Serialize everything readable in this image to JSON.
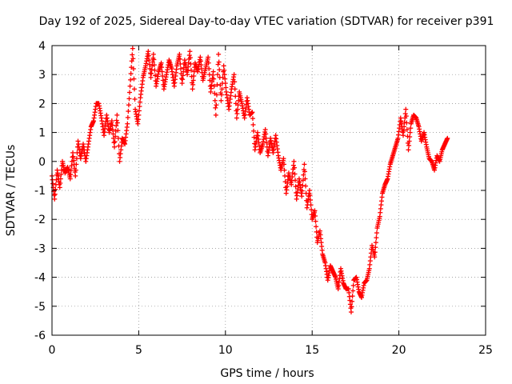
{
  "chart_data": {
    "type": "scatter",
    "title": "Day 192 of 2025, Sidereal Day-to-day VTEC variation (SDTVAR) for receiver p391",
    "xlabel": "GPS time / hours",
    "ylabel": "SDTVAR / TECUs",
    "xlim": [
      0,
      25
    ],
    "ylim": [
      -6,
      4
    ],
    "xticks": [
      0,
      5,
      10,
      15,
      20,
      25
    ],
    "yticks": [
      -6,
      -5,
      -4,
      -3,
      -2,
      -1,
      0,
      1,
      2,
      3,
      4
    ],
    "xtick_labels": [
      "0",
      "5",
      "10",
      "15",
      "20",
      "25"
    ],
    "ytick_labels": [
      "-6",
      "-5",
      "-4",
      "-3",
      "-2",
      "-1",
      "0",
      "1",
      "2",
      "3",
      "4"
    ],
    "grid": true,
    "marker": "+",
    "color": "#ff0000",
    "series": [
      {
        "name": "SDTVAR",
        "x": [
          0.0,
          0.15,
          0.3,
          0.45,
          0.6,
          0.75,
          0.9,
          1.05,
          1.2,
          1.35,
          1.5,
          1.65,
          1.8,
          1.95,
          2.1,
          2.25,
          2.4,
          2.55,
          2.7,
          2.85,
          3.0,
          3.15,
          3.3,
          3.45,
          3.6,
          3.75,
          3.9,
          4.05,
          4.2,
          4.35,
          4.5,
          4.65,
          4.8,
          4.95,
          5.1,
          5.25,
          5.4,
          5.55,
          5.7,
          5.85,
          6.0,
          6.15,
          6.3,
          6.45,
          6.6,
          6.75,
          6.9,
          7.05,
          7.2,
          7.35,
          7.5,
          7.65,
          7.8,
          7.95,
          8.1,
          8.25,
          8.4,
          8.55,
          8.7,
          8.85,
          9.0,
          9.15,
          9.3,
          9.45,
          9.6,
          9.75,
          9.9,
          10.05,
          10.2,
          10.35,
          10.5,
          10.65,
          10.8,
          10.95,
          11.1,
          11.25,
          11.4,
          11.55,
          11.7,
          11.85,
          12.0,
          12.15,
          12.3,
          12.45,
          12.6,
          12.75,
          12.9,
          13.05,
          13.2,
          13.35,
          13.5,
          13.65,
          13.8,
          13.95,
          14.1,
          14.25,
          14.4,
          14.55,
          14.7,
          14.85,
          15.0,
          15.15,
          15.3,
          15.45,
          15.6,
          15.75,
          15.9,
          16.05,
          16.2,
          16.35,
          16.5,
          16.65,
          16.8,
          16.95,
          17.1,
          17.25,
          17.4,
          17.55,
          17.7,
          17.85,
          18.0,
          18.15,
          18.3,
          18.45,
          18.6,
          18.75,
          18.9,
          19.05,
          19.2,
          19.35,
          19.5,
          19.65,
          19.8,
          19.95,
          20.1,
          20.25,
          20.4,
          20.55,
          20.7,
          20.85,
          21.0,
          21.15,
          21.3,
          21.45,
          21.6,
          21.75,
          21.9,
          22.05,
          22.2,
          22.35,
          22.5,
          22.65,
          22.8
        ],
        "y": [
          -0.5,
          -1.3,
          -0.3,
          -0.9,
          0.0,
          -0.4,
          -0.2,
          -0.6,
          0.3,
          -0.5,
          0.7,
          0.1,
          0.6,
          0.0,
          0.6,
          1.2,
          1.4,
          2.0,
          2.0,
          1.5,
          0.9,
          1.6,
          1.0,
          1.4,
          0.5,
          1.6,
          0.0,
          0.8,
          0.6,
          1.3,
          2.6,
          3.9,
          1.8,
          1.3,
          2.2,
          2.9,
          3.3,
          3.8,
          2.9,
          3.7,
          2.6,
          3.1,
          3.4,
          2.5,
          3.0,
          3.5,
          3.2,
          2.6,
          3.3,
          3.7,
          2.7,
          3.5,
          3.0,
          3.8,
          2.5,
          3.4,
          3.1,
          3.6,
          2.8,
          3.2,
          3.6,
          2.4,
          3.1,
          1.6,
          3.7,
          2.1,
          3.3,
          2.4,
          1.8,
          2.5,
          3.0,
          1.5,
          2.4,
          2.0,
          1.5,
          2.2,
          1.6,
          1.7,
          0.4,
          1.0,
          0.3,
          0.6,
          1.1,
          0.2,
          0.8,
          0.3,
          0.9,
          0.2,
          -0.3,
          0.1,
          -1.1,
          -0.4,
          -0.8,
          0.0,
          -1.3,
          -0.6,
          -1.2,
          -0.1,
          -1.6,
          -1.0,
          -2.0,
          -1.7,
          -2.8,
          -2.4,
          -3.2,
          -3.5,
          -4.1,
          -3.6,
          -3.8,
          -4.0,
          -4.4,
          -3.7,
          -4.2,
          -4.4,
          -4.4,
          -5.2,
          -4.1,
          -4.0,
          -4.5,
          -4.7,
          -4.2,
          -4.1,
          -3.7,
          -2.9,
          -3.3,
          -2.3,
          -1.9,
          -1.1,
          -0.8,
          -0.6,
          -0.1,
          0.2,
          0.5,
          0.8,
          1.5,
          0.9,
          1.8,
          0.4,
          1.3,
          1.6,
          1.5,
          1.2,
          0.7,
          1.0,
          0.5,
          0.1,
          0.0,
          -0.3,
          0.2,
          0.0,
          0.4,
          0.6,
          0.8
        ]
      }
    ]
  }
}
